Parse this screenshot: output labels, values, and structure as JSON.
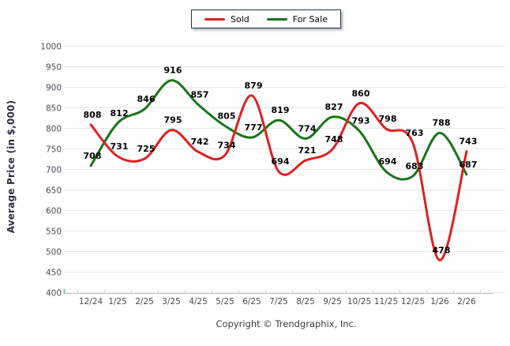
{
  "chart_data": {
    "type": "line",
    "title": "",
    "subtitle": "",
    "xlabel": "",
    "ylabel": "Average Price (in $,000)",
    "categories": [
      "12/24",
      "1/25",
      "2/25",
      "3/25",
      "4/25",
      "5/25",
      "6/25",
      "7/25",
      "8/25",
      "9/25",
      "10/25",
      "11/25",
      "12/25",
      "1/26",
      "2/26"
    ],
    "series": [
      {
        "name": "Sold",
        "color": "#e02020",
        "values": [
          808,
          731,
          725,
          795,
          742,
          734,
          879,
          694,
          721,
          748,
          860,
          798,
          763,
          478,
          743
        ]
      },
      {
        "name": "For Sale",
        "color": "#197419",
        "values": [
          708,
          812,
          846,
          916,
          857,
          805,
          777,
          819,
          774,
          827,
          793,
          694,
          683,
          788,
          687
        ]
      }
    ],
    "ylim": [
      400,
      1000
    ],
    "ytick_step": 50,
    "yticks": [
      400,
      450,
      500,
      550,
      600,
      650,
      700,
      750,
      800,
      850,
      900,
      950,
      1000
    ],
    "grid": "horizontal",
    "legend_position": "top-center",
    "curve": "spline",
    "data_labels": true
  },
  "footer": {
    "copyright": "Copyright © Trendgraphix, Inc."
  },
  "colors": {
    "sold_line": "#e02020",
    "for_sale_line": "#197419",
    "gridline": "#e7e7e7",
    "axis_line": "#bcc6ce",
    "axis_tick": "#cfcfcf",
    "y_axis_end_tick": "#8ab4d8",
    "tick_label": "#4a4a58",
    "data_label": "#000000",
    "y_title": "#2e2e3e",
    "legend_border": "#25364e"
  }
}
